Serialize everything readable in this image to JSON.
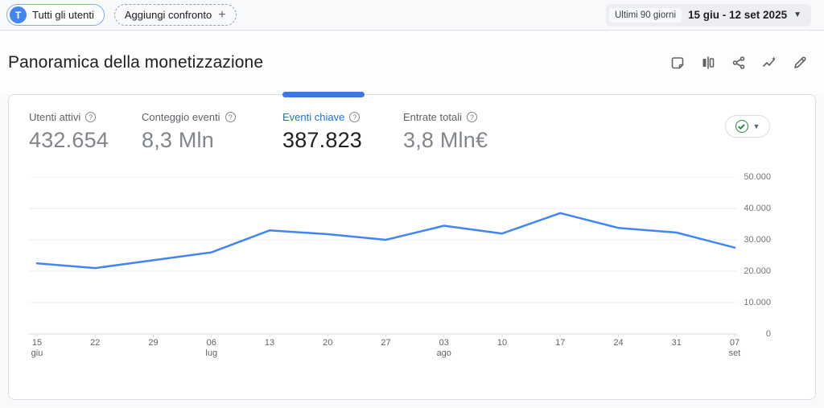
{
  "topbar": {
    "audience_chip": {
      "avatar_letter": "T",
      "label": "Tutti gli utenti"
    },
    "comparison_chip": {
      "label": "Aggiungi confronto",
      "plus_sign": "+"
    },
    "date_picker": {
      "preset_label": "Ultimi 90 giorni",
      "range_text": "15 giu - 12 set 2025",
      "caret": "▼"
    }
  },
  "header": {
    "title": "Panoramica della monetizzazione",
    "action_icons": [
      "note-icon",
      "comparison-icon",
      "share-icon",
      "insights-icon",
      "edit-icon"
    ]
  },
  "scorecards": [
    {
      "label": "Utenti attivi",
      "value": "432.654",
      "selected": false
    },
    {
      "label": "Conteggio eventi",
      "value": "8,3 Mln",
      "selected": false
    },
    {
      "label": "Eventi chiave",
      "value": "387.823",
      "selected": true
    },
    {
      "label": "Entrate totali",
      "value": "3,8 Mln€",
      "selected": false
    }
  ],
  "data_quality_button": {
    "icon": "check-circle-icon",
    "state": "valid",
    "caret": "▼"
  },
  "colors": {
    "accent_blue": "#1a73e8",
    "indicator_blue": "#3b78e7",
    "line_blue": "#4285f4",
    "check_green": "#1e8e3e",
    "gridline": "#ececee",
    "axis": "#dadce0"
  },
  "chart_data": {
    "type": "line",
    "series_name": "Eventi chiave",
    "x": [
      "15 giu",
      "22",
      "29",
      "06 lug",
      "13",
      "20",
      "27",
      "03 ago",
      "10",
      "17",
      "24",
      "31",
      "07 set"
    ],
    "values": [
      22500,
      21000,
      23500,
      26000,
      33000,
      31800,
      30000,
      34500,
      32000,
      38500,
      33800,
      32300,
      27500
    ],
    "ylim": [
      0,
      50000
    ],
    "yticks": [
      {
        "value": 50000,
        "label": "50.000"
      },
      {
        "value": 40000,
        "label": "40.000"
      },
      {
        "value": 30000,
        "label": "30.000"
      },
      {
        "value": 20000,
        "label": "20.000"
      },
      {
        "value": 10000,
        "label": "10.000"
      },
      {
        "value": 0,
        "label": "0"
      }
    ],
    "grid": true,
    "legend": "none",
    "y_axis_side": "right"
  }
}
